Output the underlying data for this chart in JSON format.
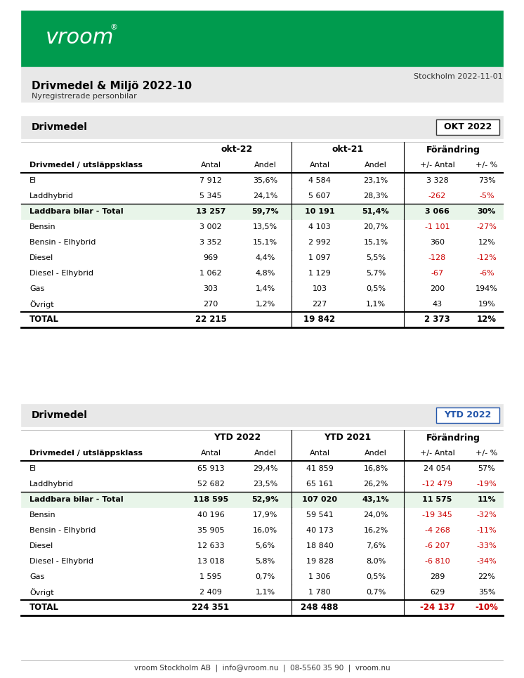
{
  "title": "Drivmedel & Miljö 2022-10",
  "subtitle": "Nyregistrerade personbilar",
  "date": "Stockholm 2022-11-01",
  "green_header_color": "#009B4E",
  "light_gray_bg": "#E8E8E8",
  "lighter_gray_bg": "#F0F0F0",
  "green_row_bg": "#E8F5E9",
  "white": "#FFFFFF",
  "red_color": "#CC0000",
  "black": "#000000",
  "dark_gray": "#333333",
  "blue_ytd": "#2255AA",
  "footer_text": "vroom Stockholm AB  |  info@vroom.nu  |  08-5560 35 90  |  vroom.nu",
  "table1": {
    "section_label": "Drivmedel",
    "badge_label": "OKT 2022",
    "badge_color": "#FFFFFF",
    "badge_border": "#CCCCCC",
    "col_headers": [
      "Drivmedel / utsläppsklass",
      "okt-22",
      "",
      "okt-21",
      "",
      "Förändring",
      ""
    ],
    "col_subheaders": [
      "",
      "Antal",
      "Andel",
      "Antal",
      "Andel",
      "+/- Antal",
      "+/- %"
    ],
    "rows": [
      {
        "label": "El",
        "v1": "7 912",
        "v2": "35,6%",
        "v3": "4 584",
        "v4": "23,1%",
        "v5": "3 328",
        "v6": "73%",
        "bold": false,
        "red5": false,
        "red6": false,
        "green_bg": false
      },
      {
        "label": "Laddhybrid",
        "v1": "5 345",
        "v2": "24,1%",
        "v3": "5 607",
        "v4": "28,3%",
        "v5": "-262",
        "v6": "-5%",
        "bold": false,
        "red5": true,
        "red6": true,
        "green_bg": false
      },
      {
        "label": "Laddbara bilar - Total",
        "v1": "13 257",
        "v2": "59,7%",
        "v3": "10 191",
        "v4": "51,4%",
        "v5": "3 066",
        "v6": "30%",
        "bold": true,
        "red5": false,
        "red6": false,
        "green_bg": true
      },
      {
        "label": "Bensin",
        "v1": "3 002",
        "v2": "13,5%",
        "v3": "4 103",
        "v4": "20,7%",
        "v5": "-1 101",
        "v6": "-27%",
        "bold": false,
        "red5": true,
        "red6": true,
        "green_bg": false
      },
      {
        "label": "Bensin - Elhybrid",
        "v1": "3 352",
        "v2": "15,1%",
        "v3": "2 992",
        "v4": "15,1%",
        "v5": "360",
        "v6": "12%",
        "bold": false,
        "red5": false,
        "red6": false,
        "green_bg": false
      },
      {
        "label": "Diesel",
        "v1": "969",
        "v2": "4,4%",
        "v3": "1 097",
        "v4": "5,5%",
        "v5": "-128",
        "v6": "-12%",
        "bold": false,
        "red5": true,
        "red6": true,
        "green_bg": false
      },
      {
        "label": "Diesel - Elhybrid",
        "v1": "1 062",
        "v2": "4,8%",
        "v3": "1 129",
        "v4": "5,7%",
        "v5": "-67",
        "v6": "-6%",
        "bold": false,
        "red5": true,
        "red6": true,
        "green_bg": false
      },
      {
        "label": "Gas",
        "v1": "303",
        "v2": "1,4%",
        "v3": "103",
        "v4": "0,5%",
        "v5": "200",
        "v6": "194%",
        "bold": false,
        "red5": false,
        "red6": false,
        "green_bg": false
      },
      {
        "label": "Övrigt",
        "v1": "270",
        "v2": "1,2%",
        "v3": "227",
        "v4": "1,1%",
        "v5": "43",
        "v6": "19%",
        "bold": false,
        "red5": false,
        "red6": false,
        "green_bg": false
      },
      {
        "label": "TOTAL",
        "v1": "22 215",
        "v2": "",
        "v3": "19 842",
        "v4": "",
        "v5": "2 373",
        "v6": "12%",
        "bold": true,
        "red5": false,
        "red6": false,
        "green_bg": false
      }
    ]
  },
  "table2": {
    "section_label": "Drivmedel",
    "badge_label": "YTD 2022",
    "badge_color": "#FFFFFF",
    "badge_border": "#2255AA",
    "badge_text_color": "#2255AA",
    "col_headers": [
      "Drivmedel / utsläppsklass",
      "YTD 2022",
      "",
      "YTD 2021",
      "",
      "Förändring",
      ""
    ],
    "col_subheaders": [
      "",
      "Antal",
      "Andel",
      "Antal",
      "Andel",
      "+/- Antal",
      "+/- %"
    ],
    "rows": [
      {
        "label": "El",
        "v1": "65 913",
        "v2": "29,4%",
        "v3": "41 859",
        "v4": "16,8%",
        "v5": "24 054",
        "v6": "57%",
        "bold": false,
        "red5": false,
        "red6": false,
        "green_bg": false
      },
      {
        "label": "Laddhybrid",
        "v1": "52 682",
        "v2": "23,5%",
        "v3": "65 161",
        "v4": "26,2%",
        "v5": "-12 479",
        "v6": "-19%",
        "bold": false,
        "red5": true,
        "red6": true,
        "green_bg": false
      },
      {
        "label": "Laddbara bilar - Total",
        "v1": "118 595",
        "v2": "52,9%",
        "v3": "107 020",
        "v4": "43,1%",
        "v5": "11 575",
        "v6": "11%",
        "bold": true,
        "red5": false,
        "red6": false,
        "green_bg": true
      },
      {
        "label": "Bensin",
        "v1": "40 196",
        "v2": "17,9%",
        "v3": "59 541",
        "v4": "24,0%",
        "v5": "-19 345",
        "v6": "-32%",
        "bold": false,
        "red5": true,
        "red6": true,
        "green_bg": false
      },
      {
        "label": "Bensin - Elhybrid",
        "v1": "35 905",
        "v2": "16,0%",
        "v3": "40 173",
        "v4": "16,2%",
        "v5": "-4 268",
        "v6": "-11%",
        "bold": false,
        "red5": true,
        "red6": true,
        "green_bg": false
      },
      {
        "label": "Diesel",
        "v1": "12 633",
        "v2": "5,6%",
        "v3": "18 840",
        "v4": "7,6%",
        "v5": "-6 207",
        "v6": "-33%",
        "bold": false,
        "red5": true,
        "red6": true,
        "green_bg": false
      },
      {
        "label": "Diesel - Elhybrid",
        "v1": "13 018",
        "v2": "5,8%",
        "v3": "19 828",
        "v4": "8,0%",
        "v5": "-6 810",
        "v6": "-34%",
        "bold": false,
        "red5": true,
        "red6": true,
        "green_bg": false
      },
      {
        "label": "Gas",
        "v1": "1 595",
        "v2": "0,7%",
        "v3": "1 306",
        "v4": "0,5%",
        "v5": "289",
        "v6": "22%",
        "bold": false,
        "red5": false,
        "red6": false,
        "green_bg": false
      },
      {
        "label": "Övrigt",
        "v1": "2 409",
        "v2": "1,1%",
        "v3": "1 780",
        "v4": "0,7%",
        "v5": "629",
        "v6": "35%",
        "bold": false,
        "red5": false,
        "red6": false,
        "green_bg": false
      },
      {
        "label": "TOTAL",
        "v1": "224 351",
        "v2": "",
        "v3": "248 488",
        "v4": "",
        "v5": "-24 137",
        "v6": "-10%",
        "bold": true,
        "red5": true,
        "red6": true,
        "green_bg": false
      }
    ]
  }
}
